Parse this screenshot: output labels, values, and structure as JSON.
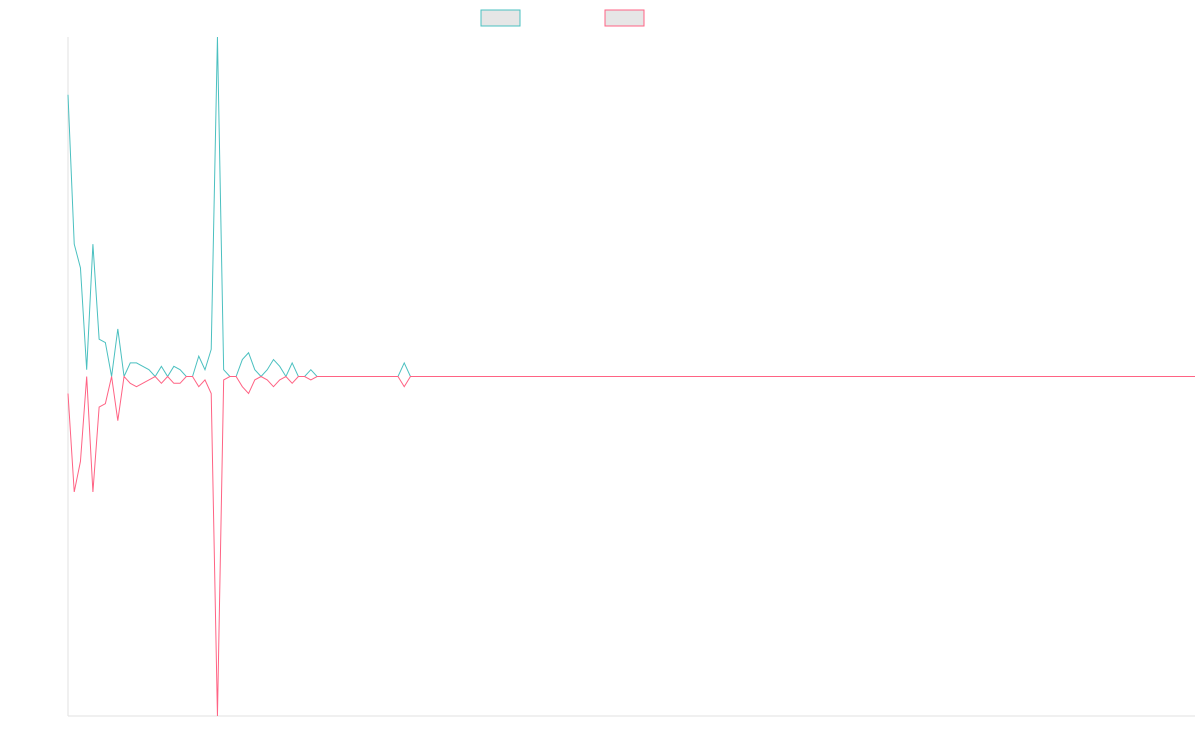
{
  "chart_data": {
    "type": "line",
    "x": [
      0,
      1,
      2,
      3,
      4,
      5,
      6,
      7,
      8,
      9,
      10,
      11,
      12,
      13,
      14,
      15,
      16,
      17,
      18,
      19,
      20,
      21,
      22,
      23,
      24,
      25,
      26,
      27,
      28,
      29,
      30,
      31,
      32,
      33,
      34,
      35,
      36,
      37,
      38,
      39,
      40,
      41,
      42,
      43,
      44,
      45,
      46,
      47,
      48,
      49,
      50,
      51,
      52,
      53,
      54,
      55,
      181
    ],
    "xlim": [
      0,
      181
    ],
    "ylim": [
      -100,
      100
    ],
    "series": [
      {
        "color": "#4bc0c0",
        "values": [
          83,
          39,
          32,
          2,
          39,
          11,
          10,
          0,
          14,
          0,
          4,
          4,
          3,
          2,
          0,
          3,
          0,
          3,
          2,
          0,
          0,
          6,
          2,
          8,
          100,
          2,
          0,
          0,
          5,
          7,
          2,
          0,
          2,
          5,
          3,
          0,
          4,
          0,
          0,
          2,
          0,
          0,
          0,
          0,
          0,
          0,
          0,
          0,
          0,
          0,
          0,
          0,
          0,
          0,
          4,
          0,
          0
        ]
      },
      {
        "color": "#ff6384",
        "values": [
          -5,
          -34,
          -25,
          0,
          -34,
          -9,
          -8,
          0,
          -13,
          0,
          -2,
          -3,
          -2,
          -1,
          0,
          -2,
          0,
          -2,
          -2,
          0,
          0,
          -3,
          -1,
          -5,
          -100,
          -1,
          0,
          0,
          -3,
          -5,
          -1,
          0,
          -1,
          -3,
          -1,
          0,
          -2,
          0,
          0,
          -1,
          0,
          0,
          0,
          0,
          0,
          0,
          0,
          0,
          0,
          0,
          0,
          0,
          0,
          0,
          -3,
          0,
          0
        ]
      }
    ]
  }
}
